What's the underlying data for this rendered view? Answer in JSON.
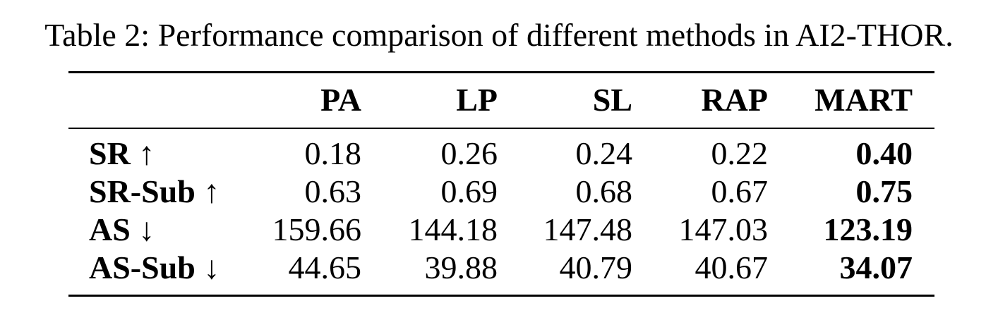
{
  "caption": "Table 2: Performance comparison of different methods in AI2-THOR.",
  "table": {
    "headers": [
      "",
      "PA",
      "LP",
      "SL",
      "RAP",
      "MART"
    ],
    "rows": [
      {
        "label": "SR ↑",
        "values": [
          "0.18",
          "0.26",
          "0.24",
          "0.22",
          "0.40"
        ]
      },
      {
        "label": "SR-Sub ↑",
        "values": [
          "0.63",
          "0.69",
          "0.68",
          "0.67",
          "0.75"
        ]
      },
      {
        "label": "AS ↓",
        "values": [
          "159.66",
          "144.18",
          "147.48",
          "147.03",
          "123.19"
        ]
      },
      {
        "label": "AS-Sub ↓",
        "values": [
          "44.65",
          "39.88",
          "40.79",
          "40.67",
          "34.07"
        ]
      }
    ],
    "bold_column": "MART"
  }
}
